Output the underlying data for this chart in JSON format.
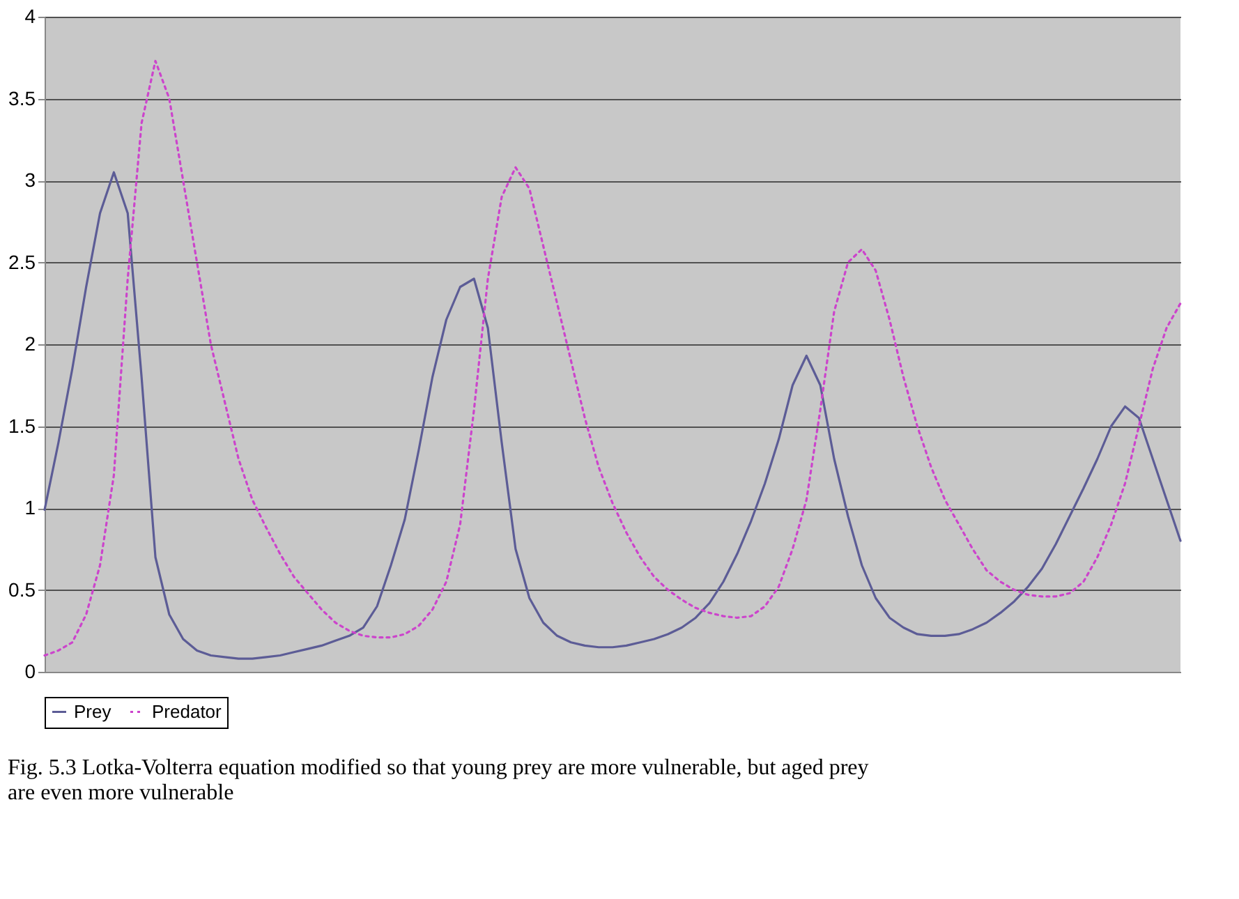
{
  "chart_data": {
    "type": "line",
    "categories": [
      null,
      null,
      null,
      null,
      null,
      null,
      null,
      null,
      null,
      null,
      null,
      null,
      null,
      null,
      null,
      null,
      null,
      null,
      null,
      null,
      null,
      null,
      null,
      null,
      null,
      null,
      null,
      null,
      null,
      null,
      null,
      null,
      null,
      null,
      null,
      null,
      null,
      null,
      null,
      null,
      null,
      null,
      null,
      null,
      null,
      null,
      null,
      null,
      null,
      null,
      null,
      null,
      null,
      null,
      null,
      null,
      null,
      null,
      null,
      null,
      null,
      null,
      null,
      null,
      null,
      null,
      null,
      null,
      null,
      null,
      null,
      null,
      null,
      null,
      null,
      null,
      null,
      null,
      null,
      null,
      null,
      null,
      null
    ],
    "series": [
      {
        "name": "Prey",
        "color": "#5c5c96",
        "line_style": "solid",
        "values": [
          0.99,
          1.4,
          1.85,
          2.35,
          2.8,
          3.05,
          2.8,
          1.8,
          0.7,
          0.35,
          0.2,
          0.13,
          0.1,
          0.09,
          0.08,
          0.08,
          0.09,
          0.1,
          0.12,
          0.14,
          0.16,
          0.19,
          0.22,
          0.27,
          0.4,
          0.65,
          0.93,
          1.35,
          1.8,
          2.15,
          2.35,
          2.4,
          2.1,
          1.4,
          0.75,
          0.45,
          0.3,
          0.22,
          0.18,
          0.16,
          0.15,
          0.15,
          0.16,
          0.18,
          0.2,
          0.23,
          0.27,
          0.33,
          0.42,
          0.55,
          0.72,
          0.92,
          1.15,
          1.42,
          1.75,
          1.93,
          1.75,
          1.3,
          0.95,
          0.65,
          0.45,
          0.33,
          0.27,
          0.23,
          0.22,
          0.22,
          0.23,
          0.26,
          0.3,
          0.36,
          0.43,
          0.52,
          0.63,
          0.78,
          0.95,
          1.12,
          1.3,
          1.5,
          1.62,
          1.55,
          1.3,
          1.05,
          0.8
        ]
      },
      {
        "name": "Predator",
        "color": "#cc44cc",
        "line_style": "dotted",
        "values": [
          0.1,
          0.13,
          0.18,
          0.35,
          0.65,
          1.2,
          2.4,
          3.35,
          3.73,
          3.5,
          3.0,
          2.5,
          2.0,
          1.65,
          1.3,
          1.05,
          0.88,
          0.72,
          0.58,
          0.48,
          0.38,
          0.3,
          0.25,
          0.22,
          0.21,
          0.21,
          0.23,
          0.28,
          0.38,
          0.55,
          0.9,
          1.6,
          2.4,
          2.9,
          3.08,
          2.95,
          2.6,
          2.25,
          1.9,
          1.55,
          1.25,
          1.03,
          0.85,
          0.7,
          0.58,
          0.5,
          0.44,
          0.39,
          0.36,
          0.34,
          0.33,
          0.34,
          0.4,
          0.52,
          0.75,
          1.05,
          1.6,
          2.2,
          2.5,
          2.58,
          2.45,
          2.15,
          1.8,
          1.5,
          1.25,
          1.05,
          0.9,
          0.75,
          0.62,
          0.55,
          0.5,
          0.47,
          0.46,
          0.46,
          0.48,
          0.55,
          0.7,
          0.9,
          1.15,
          1.5,
          1.85,
          2.1,
          2.25
        ]
      }
    ],
    "ylim": [
      0,
      4
    ],
    "yticks": [
      0,
      0.5,
      1,
      1.5,
      2,
      2.5,
      3,
      3.5,
      4
    ],
    "grid": "y",
    "legend": "bottom",
    "tick_labels": "y",
    "annotations": [
      "Fig. 5.3 Lotka-Volterra equation modified so that young prey are more vulnerable, but aged prey are even more vulnerable"
    ]
  }
}
